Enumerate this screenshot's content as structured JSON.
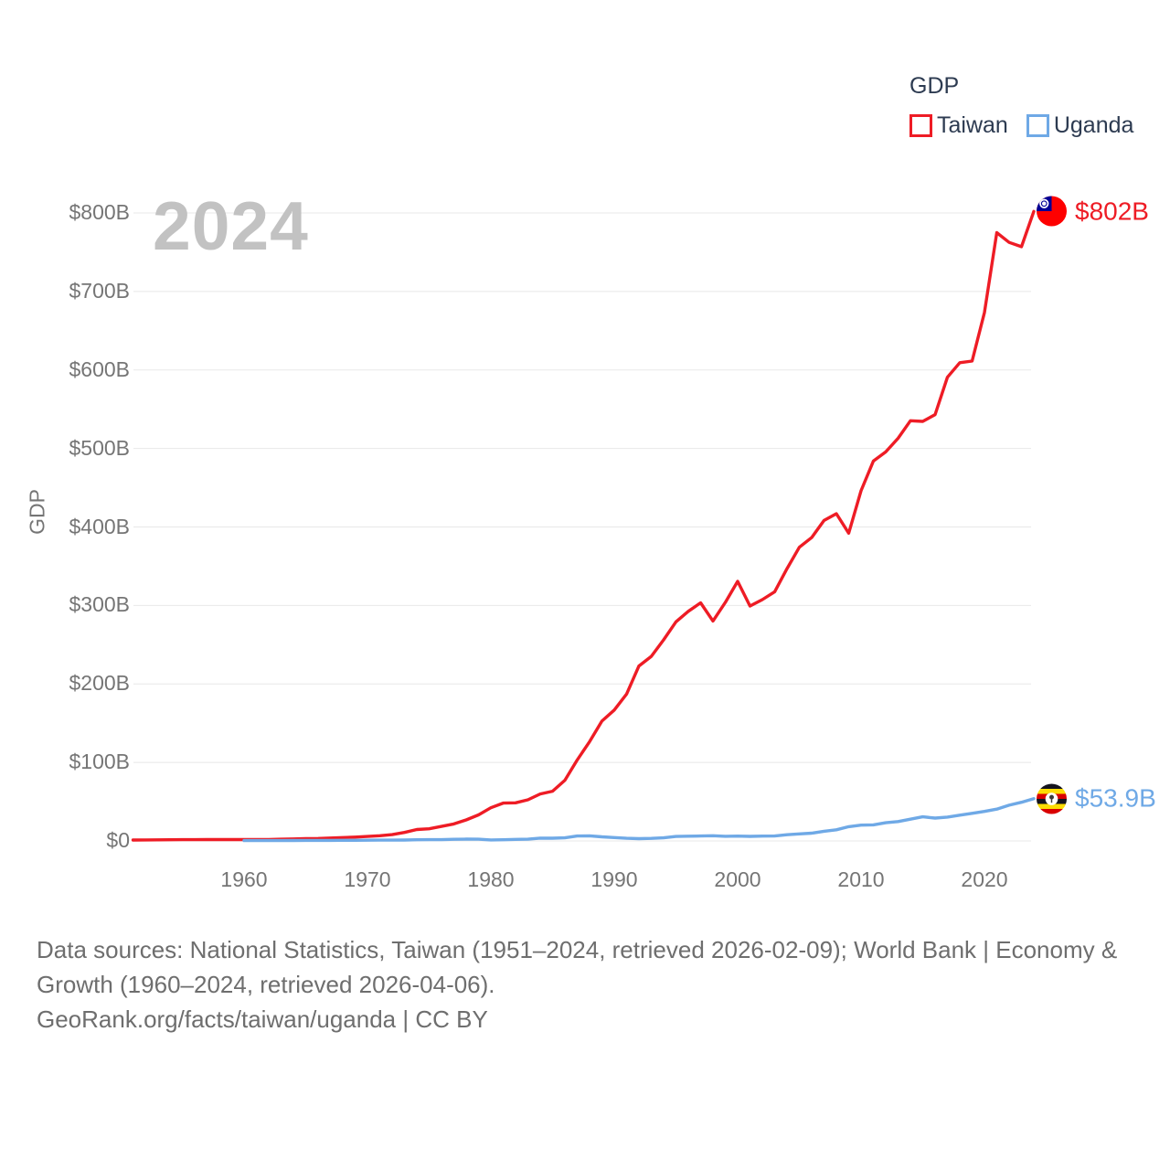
{
  "chart_data": {
    "type": "line",
    "title_watermark": "2024",
    "legend_title": "GDP",
    "ylabel": "GDP",
    "xlim": [
      1951,
      2024
    ],
    "ylim": [
      0,
      800
    ],
    "grid": "horizontal",
    "legend_position": "top-right",
    "y_ticks": [
      {
        "value": 0,
        "label": "$0"
      },
      {
        "value": 100,
        "label": "$100B"
      },
      {
        "value": 200,
        "label": "$200B"
      },
      {
        "value": 300,
        "label": "$300B"
      },
      {
        "value": 400,
        "label": "$400B"
      },
      {
        "value": 500,
        "label": "$500B"
      },
      {
        "value": 600,
        "label": "$600B"
      },
      {
        "value": 700,
        "label": "$700B"
      },
      {
        "value": 800,
        "label": "$800B"
      }
    ],
    "x_ticks": [
      {
        "value": 1960,
        "label": "1960"
      },
      {
        "value": 1970,
        "label": "1970"
      },
      {
        "value": 1980,
        "label": "1980"
      },
      {
        "value": 1990,
        "label": "1990"
      },
      {
        "value": 2000,
        "label": "2000"
      },
      {
        "value": 2010,
        "label": "2010"
      },
      {
        "value": 2020,
        "label": "2020"
      }
    ],
    "series": [
      {
        "name": "Taiwan",
        "color": "#ee1c25",
        "end_label": "$802B",
        "flag_icon": "taiwan-flag-icon",
        "unit": "billion USD",
        "year_start": 1951,
        "year_end": 2024,
        "values": [
          1.2,
          1.3,
          1.4,
          1.5,
          1.6,
          1.6,
          1.7,
          1.7,
          1.7,
          1.7,
          1.8,
          1.9,
          2.2,
          2.6,
          2.9,
          3.2,
          3.7,
          4.3,
          4.9,
          5.7,
          6.6,
          8.0,
          10.8,
          14.5,
          15.5,
          18.5,
          21.7,
          26.8,
          33.2,
          42.3,
          48.2,
          48.6,
          52.4,
          59.8,
          63.4,
          77.3,
          103.2,
          126.5,
          152.7,
          166.8,
          187.1,
          222.9,
          235.1,
          256.2,
          279.1,
          292.5,
          303.3,
          280.2,
          303.8,
          330.7,
          299.3,
          307.4,
          317.4,
          346.9,
          374.1,
          386.5,
          408.3,
          416.9,
          392.1,
          446.1,
          484.0,
          495.6,
          512.9,
          535.3,
          534.5,
          543.1,
          590.8,
          609.2,
          611.4,
          673.2,
          775.0,
          762.5,
          757.0,
          802.0
        ]
      },
      {
        "name": "Uganda",
        "color": "#6fa9e6",
        "end_label": "$53.9B",
        "flag_icon": "uganda-flag-icon",
        "unit": "billion USD",
        "year_start": 1960,
        "year_end": 2024,
        "values": [
          0.42,
          0.44,
          0.45,
          0.52,
          0.58,
          0.66,
          0.7,
          0.75,
          0.79,
          0.86,
          0.96,
          1.01,
          1.07,
          1.22,
          1.52,
          1.68,
          1.66,
          2.05,
          2.35,
          2.21,
          1.24,
          1.56,
          1.94,
          2.19,
          3.63,
          3.52,
          3.92,
          6.27,
          6.51,
          5.29,
          4.3,
          3.32,
          2.86,
          3.22,
          3.99,
          5.76,
          6.05,
          6.27,
          6.58,
          5.99,
          6.19,
          5.84,
          6.18,
          6.33,
          7.94,
          9.01,
          9.94,
          12.29,
          14.24,
          18.17,
          20.18,
          20.51,
          23.21,
          24.67,
          27.77,
          30.73,
          29.07,
          30.43,
          32.89,
          35.17,
          37.6,
          40.53,
          45.57,
          49.27,
          53.9
        ]
      }
    ]
  },
  "footer": {
    "line1": "Data sources: National Statistics, Taiwan (1951–2024, retrieved 2026-02-09); World Bank | Economy &",
    "line2": "Growth (1960–2024, retrieved 2026-04-06).",
    "line3": "GeoRank.org/facts/taiwan/uganda | CC BY"
  }
}
